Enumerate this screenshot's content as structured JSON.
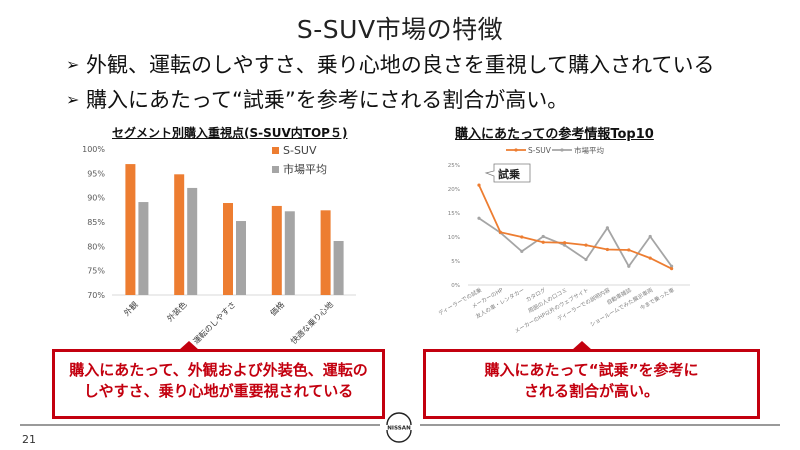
{
  "slide": {
    "title": "S-SUV市場の特徴",
    "bullets": [
      {
        "mark": "➢",
        "text": "外観、運転のしやすさ、乗り心地の良さを重視して購入されている"
      },
      {
        "mark": "➢",
        "text": "購入にあたって“試乗”を参考にされる割合が高い。"
      }
    ],
    "page_number": "21",
    "logo_text": "NISSAN"
  },
  "colors": {
    "s_suv": "#ed7d31",
    "market_avg": "#a5a5a5",
    "callout_red": "#c3000f"
  },
  "callouts": [
    {
      "line1": "購入にあたって、外観および外装色、運転の",
      "line2": "しやすさ、乗り心地が重要視されている"
    },
    {
      "line1": "購入にあたって“試乗”を参考に",
      "line2": "される割合が高い。"
    }
  ],
  "chart_data": [
    {
      "type": "bar",
      "title": "セグメント別購入重視点(S-SUV内TOP５)",
      "categories": [
        "外観",
        "外装色",
        "運転のしやすさ",
        "価格",
        "快適な乗り心地"
      ],
      "series": [
        {
          "name": "S-SUV",
          "values": [
            96.9,
            94.8,
            88.9,
            88.3,
            87.4
          ]
        },
        {
          "name": "市場平均",
          "values": [
            89.1,
            92.0,
            85.2,
            87.2,
            81.1
          ]
        }
      ],
      "ylim": [
        70,
        100
      ],
      "yticks": [
        "70%",
        "75%",
        "80%",
        "85%",
        "90%",
        "95%",
        "100%"
      ],
      "xlabel": "",
      "ylabel": "",
      "legend_position": "top-right",
      "grid": false
    },
    {
      "type": "line",
      "title": "購入にあたっての参考情報Top10",
      "categories": [
        "ディーラーでの試乗",
        "メーカーのHP",
        "友人の車・レンタカー",
        "カタログ",
        "周囲の人の口コミ",
        "メーカーのHP以外のウェブサイト",
        "ディーラーでの説明内容",
        "自動車雑誌",
        "ショールームでみた展示車両",
        "今まで乗った車"
      ],
      "series": [
        {
          "name": "S-SUV",
          "values": [
            20.8,
            11.0,
            10.0,
            8.9,
            8.8,
            8.3,
            7.4,
            7.3,
            5.6,
            3.4
          ]
        },
        {
          "name": "市場平均",
          "values": [
            13.9,
            10.9,
            7.0,
            10.1,
            8.3,
            5.3,
            11.9,
            3.9,
            10.1,
            3.9
          ]
        }
      ],
      "ylim": [
        0,
        25
      ],
      "yticks": [
        "0%",
        "5%",
        "10%",
        "15%",
        "20%",
        "25%"
      ],
      "annotation": "試乗",
      "legend_position": "top",
      "grid": false
    }
  ]
}
